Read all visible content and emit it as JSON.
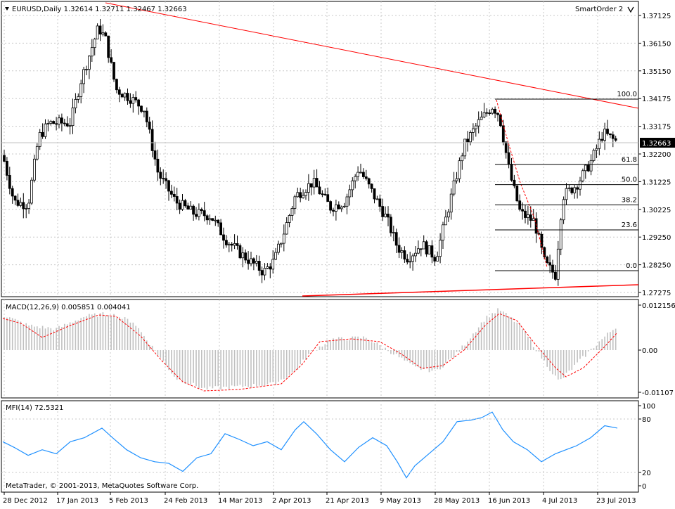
{
  "main_chart": {
    "symbol_header": "EURUSD,Daily  1.32614 1.32711 1.32467 1.32663",
    "expert_label": "SmartOrder 2",
    "price_axis_labels": [
      "1.37125",
      "1.36150",
      "1.35150",
      "1.34175",
      "1.33175",
      "1.32200",
      "1.31225",
      "1.30225",
      "1.29250",
      "1.28250",
      "1.27275"
    ],
    "current_price": "1.32663",
    "fib_levels": [
      {
        "label": "100.0",
        "price": 1.3415
      },
      {
        "label": "61.8",
        "price": 1.3183
      },
      {
        "label": "50.0",
        "price": 1.3111
      },
      {
        "label": "38.2",
        "price": 1.3039
      },
      {
        "label": "23.6",
        "price": 1.295
      },
      {
        "label": "0.0",
        "price": 1.2805
      }
    ]
  },
  "macd_panel": {
    "header": "MACD(12,26,9) 0.005851 0.004041",
    "axis_labels": [
      "0.012156",
      "0.00",
      "-0.01107"
    ]
  },
  "mfi_panel": {
    "header": "MFI(14) 72.5321",
    "axis_labels": [
      "100",
      "80",
      "20",
      "0"
    ]
  },
  "footer": {
    "copyright": "MetaTrader, © 2001-2013, MetaQuotes Software Corp."
  },
  "time_axis_labels": [
    "28 Dec 2012",
    "17 Jan 2013",
    "5 Feb 2013",
    "24 Feb 2013",
    "14 Mar 2013",
    "2 Apr 2013",
    "21 Apr 2013",
    "9 May 2013",
    "28 May 2013",
    "16 Jun 2013",
    "4 Jul 2013",
    "23 Jul 2013"
  ],
  "colors": {
    "trendline": "#ff0000",
    "macd_signal": "#ff0000",
    "macd_hist": "#c0c0c0",
    "mfi_line": "#1e90ff",
    "grid": "#c8c8c8"
  },
  "chart_data": {
    "type": "candlestick",
    "series": [
      {
        "name": "EURUSD,Daily",
        "last": [
          1.32614,
          1.32711,
          1.32467,
          1.32663
        ]
      },
      {
        "name": "MACD(12,26,9)",
        "last": [
          0.005851,
          0.004041
        ]
      },
      {
        "name": "MFI(14)",
        "last": [
          72.5321
        ]
      }
    ],
    "ylim_price": [
      1.27275,
      1.37125
    ],
    "ylim_macd": [
      -0.01107,
      0.012156
    ],
    "ylim_mfi": [
      0,
      100
    ]
  }
}
